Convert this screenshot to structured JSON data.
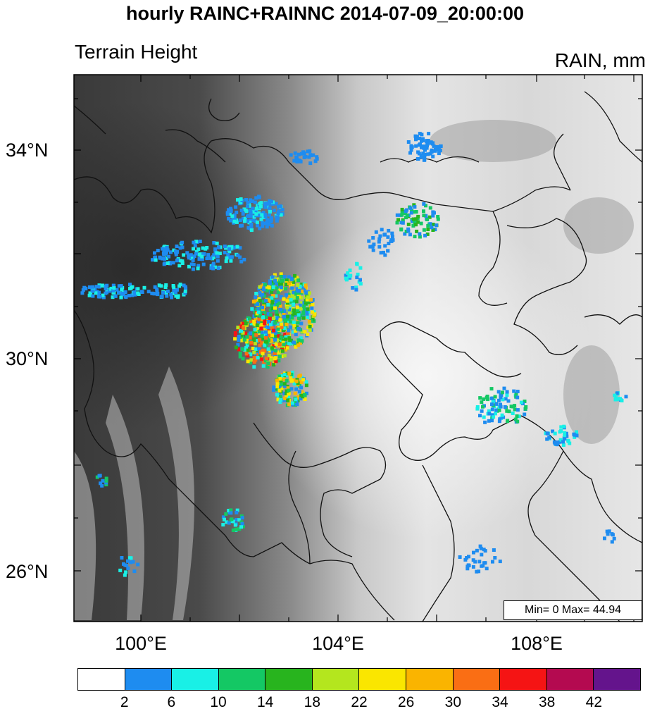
{
  "title": "hourly RAINC+RAINNC 2014-07-09_20:00:00",
  "left_subtitle": "Terrain Height",
  "right_subtitle": "RAIN, mm",
  "lat_labels": [
    "34°N",
    "30°N",
    "26°N"
  ],
  "lon_labels": [
    "100°E",
    "104°E",
    "108°E"
  ],
  "minmax_label": "Min= 0 Max= 44.94",
  "colorbar": {
    "colors": [
      "#ffffff",
      "#1e8cf0",
      "#19f0e6",
      "#14c864",
      "#28b41e",
      "#b4e61e",
      "#fae600",
      "#fab400",
      "#fa6e14",
      "#f51414",
      "#b40a50",
      "#64148c"
    ],
    "ticks": [
      "2",
      "6",
      "10",
      "14",
      "18",
      "22",
      "26",
      "30",
      "34",
      "38",
      "42"
    ]
  }
}
